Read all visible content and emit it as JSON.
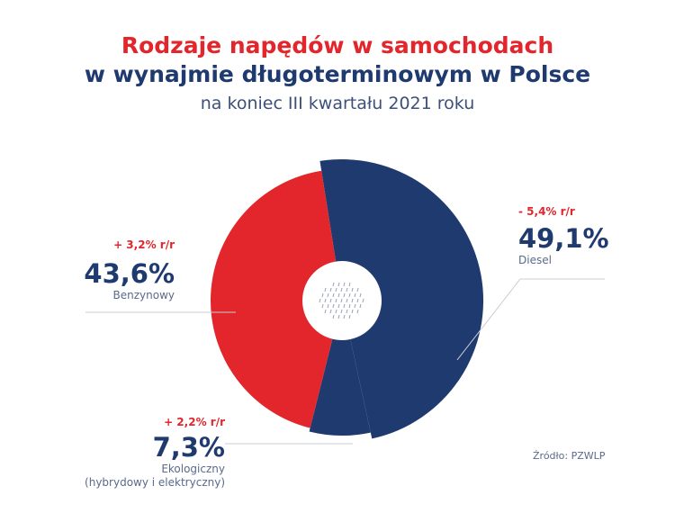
{
  "header": {
    "title_line1": "Rodzaje napędów w samochodach",
    "title_line2": "w wynajmie długoterminowym w Polsce",
    "subtitle": "na koniec III kwartału 2021 roku"
  },
  "labels": {
    "benzyna": {
      "change": "+ 3,2% r/r",
      "value": "43,6%",
      "name": "Benzynowy"
    },
    "diesel": {
      "change": "- 5,4% r/r",
      "value": "49,1%",
      "name": "Diesel"
    },
    "eko": {
      "change": "+ 2,2% r/r",
      "value": "7,3%",
      "name_line1": "Ekologiczny",
      "name_line2": "(hybrydowy i elektryczny)"
    }
  },
  "source": "Źródło: PZWLP",
  "colors": {
    "benzyna": "#e2262b",
    "diesel": "#1f3a6f",
    "eko": "#1f3a6f",
    "leader": "#c8ccd4"
  },
  "chart_data": {
    "type": "pie",
    "variant": "donut",
    "title": "Rodzaje napędów w samochodach w wynajmie długoterminowym w Polsce",
    "subtitle": "na koniec III kwartału 2021 roku",
    "categories": [
      "Diesel",
      "Ekologiczny (hybrydowy i elektryczny)",
      "Benzynowy"
    ],
    "values": [
      49.1,
      7.3,
      43.6
    ],
    "unit": "%",
    "changes_yoy": [
      "- 5,4% r/r",
      "+ 2,2% r/r",
      "+ 3,2% r/r"
    ],
    "legend": "none (direct labels)"
  }
}
